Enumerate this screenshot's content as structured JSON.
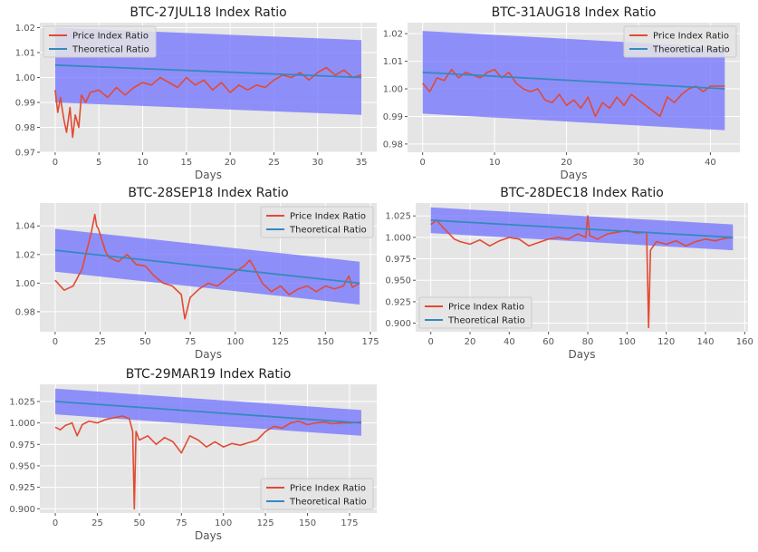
{
  "chart_data": [
    {
      "type": "line",
      "title": "BTC-27JUL18 Index Ratio",
      "xlabel": "Days",
      "xlim": [
        -1.75,
        36.75
      ],
      "ylim": [
        0.97,
        1.022
      ],
      "xticks": [
        0,
        5,
        10,
        15,
        20,
        25,
        30,
        35
      ],
      "xtick_labels": [
        "0",
        "5",
        "10",
        "15",
        "20",
        "25",
        "30",
        "35"
      ],
      "yticks": [
        0.97,
        0.98,
        0.99,
        1.0,
        1.01,
        1.02
      ],
      "ytick_labels": [
        "0.97",
        "0.98",
        "0.99",
        "1.00",
        "1.01",
        "1.02"
      ],
      "legend": "top-left",
      "band": {
        "x": [
          0,
          35
        ],
        "upper": [
          1.02,
          1.015
        ],
        "lower": [
          0.99,
          0.985
        ],
        "color": "#7070ff"
      },
      "series": [
        {
          "name": "Price Index Ratio",
          "color": "#e24a33",
          "x": [
            0,
            0.3,
            0.6,
            1,
            1.3,
            1.7,
            2,
            2.3,
            2.7,
            3,
            3.5,
            4,
            5,
            6,
            7,
            8,
            9,
            10,
            11,
            12,
            13,
            14,
            15,
            16,
            17,
            18,
            19,
            20,
            21,
            22,
            23,
            24,
            25,
            26,
            27,
            28,
            29,
            30,
            31,
            32,
            33,
            34,
            35
          ],
          "y": [
            0.995,
            0.986,
            0.992,
            0.983,
            0.978,
            0.988,
            0.976,
            0.985,
            0.98,
            0.993,
            0.99,
            0.994,
            0.995,
            0.992,
            0.996,
            0.993,
            0.996,
            0.998,
            0.997,
            1.0,
            0.998,
            0.996,
            1.0,
            0.997,
            0.999,
            0.995,
            0.998,
            0.994,
            0.997,
            0.995,
            0.997,
            0.996,
            0.999,
            1.001,
            1.0,
            1.002,
            0.999,
            1.002,
            1.004,
            1.001,
            1.003,
            1.0,
            1.001
          ]
        },
        {
          "name": "Theoretical Ratio",
          "color": "#348abd",
          "x": [
            0,
            35
          ],
          "y": [
            1.005,
            1.0
          ]
        }
      ]
    },
    {
      "type": "line",
      "title": "BTC-31AUG18 Index Ratio",
      "xlabel": "Days",
      "xlim": [
        -2.1,
        44.1
      ],
      "ylim": [
        0.977,
        1.024
      ],
      "xticks": [
        0,
        10,
        20,
        30,
        40
      ],
      "xtick_labels": [
        "0",
        "10",
        "20",
        "30",
        "40"
      ],
      "yticks": [
        0.98,
        0.99,
        1.0,
        1.01,
        1.02
      ],
      "ytick_labels": [
        "0.98",
        "0.99",
        "1.00",
        "1.01",
        "1.02"
      ],
      "legend": "top-right",
      "band": {
        "x": [
          0,
          42
        ],
        "upper": [
          1.021,
          1.015
        ],
        "lower": [
          0.991,
          0.985
        ],
        "color": "#7070ff"
      },
      "series": [
        {
          "name": "Price Index Ratio",
          "color": "#e24a33",
          "x": [
            0,
            1,
            2,
            3,
            4,
            5,
            6,
            7,
            8,
            9,
            10,
            11,
            12,
            13,
            14,
            15,
            16,
            17,
            18,
            19,
            20,
            21,
            22,
            23,
            24,
            25,
            26,
            27,
            28,
            29,
            30,
            31,
            32,
            33,
            34,
            35,
            36,
            37,
            38,
            39,
            40,
            41,
            42
          ],
          "y": [
            1.002,
            0.999,
            1.004,
            1.003,
            1.007,
            1.004,
            1.006,
            1.005,
            1.004,
            1.006,
            1.007,
            1.004,
            1.006,
            1.002,
            1.0,
            0.999,
            1.0,
            0.996,
            0.995,
            0.998,
            0.994,
            0.996,
            0.993,
            0.997,
            0.99,
            0.995,
            0.993,
            0.997,
            0.994,
            0.998,
            0.996,
            0.994,
            0.992,
            0.99,
            0.997,
            0.995,
            0.998,
            1.0,
            1.001,
            0.999,
            1.001,
            1.001,
            1.001
          ]
        },
        {
          "name": "Theoretical Ratio",
          "color": "#348abd",
          "x": [
            0,
            42
          ],
          "y": [
            1.006,
            1.0
          ]
        }
      ]
    },
    {
      "type": "line",
      "title": "BTC-28SEP18 Index Ratio",
      "xlabel": "Days",
      "xlim": [
        -8.5,
        178.5
      ],
      "ylim": [
        0.966,
        1.056
      ],
      "xticks": [
        0,
        25,
        50,
        75,
        100,
        125,
        150,
        175
      ],
      "xtick_labels": [
        "0",
        "25",
        "50",
        "75",
        "100",
        "125",
        "150",
        "175"
      ],
      "yticks": [
        0.98,
        1.0,
        1.02,
        1.04
      ],
      "ytick_labels": [
        "0.98",
        "1.00",
        "1.02",
        "1.04"
      ],
      "legend": "top-right",
      "band": {
        "x": [
          0,
          169
        ],
        "upper": [
          1.038,
          1.015
        ],
        "lower": [
          1.008,
          0.985
        ],
        "color": "#7070ff"
      },
      "series": [
        {
          "name": "Price Index Ratio",
          "color": "#e24a33",
          "x": [
            0,
            5,
            10,
            15,
            18,
            20,
            22,
            23,
            24,
            26,
            28,
            30,
            35,
            40,
            45,
            50,
            55,
            60,
            65,
            70,
            72,
            75,
            80,
            85,
            90,
            95,
            100,
            105,
            108,
            110,
            115,
            120,
            125,
            130,
            135,
            140,
            145,
            150,
            155,
            160,
            163,
            165,
            169
          ],
          "y": [
            1.002,
            0.995,
            0.998,
            1.01,
            1.025,
            1.035,
            1.048,
            1.04,
            1.038,
            1.03,
            1.022,
            1.018,
            1.015,
            1.02,
            1.013,
            1.012,
            1.005,
            1.0,
            0.998,
            0.992,
            0.975,
            0.99,
            0.996,
            1.0,
            0.998,
            1.003,
            1.008,
            1.012,
            1.016,
            1.012,
            1.0,
            0.994,
            0.998,
            0.992,
            0.996,
            0.998,
            0.994,
            0.998,
            0.996,
            0.998,
            1.005,
            0.997,
            1.0
          ]
        },
        {
          "name": "Theoretical Ratio",
          "color": "#348abd",
          "x": [
            0,
            169
          ],
          "y": [
            1.023,
            1.0
          ]
        }
      ]
    },
    {
      "type": "line",
      "title": "BTC-28DEC18 Index Ratio",
      "xlabel": "Days",
      "xlim": [
        -7.7,
        161.7
      ],
      "ylim": [
        0.89,
        1.04
      ],
      "xticks": [
        0,
        20,
        40,
        60,
        80,
        100,
        120,
        140,
        160
      ],
      "xtick_labels": [
        "0",
        "20",
        "40",
        "60",
        "80",
        "100",
        "120",
        "140",
        "160"
      ],
      "yticks": [
        0.9,
        0.925,
        0.95,
        0.975,
        1.0,
        1.025
      ],
      "ytick_labels": [
        "0.900",
        "0.925",
        "0.950",
        "0.975",
        "1.000",
        "1.025"
      ],
      "legend": "bottom-left",
      "band": {
        "x": [
          0,
          154
        ],
        "upper": [
          1.035,
          1.015
        ],
        "lower": [
          1.005,
          0.985
        ],
        "color": "#7070ff"
      },
      "series": [
        {
          "name": "Price Index Ratio",
          "color": "#e24a33",
          "x": [
            0,
            3,
            6,
            9,
            12,
            15,
            20,
            25,
            30,
            35,
            40,
            45,
            50,
            55,
            60,
            65,
            70,
            75,
            79,
            80,
            81,
            85,
            90,
            95,
            100,
            105,
            110,
            111,
            112,
            115,
            120,
            125,
            130,
            135,
            140,
            145,
            150,
            154
          ],
          "y": [
            1.015,
            1.02,
            1.012,
            1.005,
            0.998,
            0.995,
            0.992,
            0.997,
            0.99,
            0.996,
            1.0,
            0.998,
            0.99,
            0.994,
            0.998,
            1.0,
            0.998,
            1.004,
            1.0,
            1.025,
            1.002,
            0.998,
            1.004,
            1.006,
            1.008,
            1.005,
            1.006,
            0.895,
            0.985,
            0.995,
            0.992,
            0.996,
            0.99,
            0.995,
            0.998,
            0.996,
            0.999,
            1.0
          ]
        },
        {
          "name": "Theoretical Ratio",
          "color": "#348abd",
          "x": [
            0,
            154
          ],
          "y": [
            1.02,
            1.0
          ]
        }
      ]
    },
    {
      "type": "line",
      "title": "BTC-29MAR19 Index Ratio",
      "xlabel": "Days",
      "xlim": [
        -9.2,
        191.2
      ],
      "ylim": [
        0.895,
        1.045
      ],
      "xticks": [
        0,
        25,
        50,
        75,
        100,
        125,
        150,
        175
      ],
      "xtick_labels": [
        "0",
        "25",
        "50",
        "75",
        "100",
        "125",
        "150",
        "175"
      ],
      "yticks": [
        0.9,
        0.925,
        0.95,
        0.975,
        1.0,
        1.025
      ],
      "ytick_labels": [
        "0.900",
        "0.925",
        "0.950",
        "0.975",
        "1.000",
        "1.025"
      ],
      "legend": "bottom-right",
      "band": {
        "x": [
          0,
          182
        ],
        "upper": [
          1.04,
          1.015
        ],
        "lower": [
          1.01,
          0.985
        ],
        "color": "#7070ff"
      },
      "series": [
        {
          "name": "Price Index Ratio",
          "color": "#e24a33",
          "x": [
            0,
            3,
            6,
            10,
            13,
            16,
            20,
            25,
            30,
            35,
            40,
            44,
            46,
            47,
            48,
            50,
            55,
            60,
            65,
            70,
            75,
            80,
            85,
            90,
            95,
            100,
            105,
            110,
            115,
            120,
            125,
            130,
            135,
            140,
            145,
            150,
            155,
            160,
            165,
            170,
            175,
            182
          ],
          "y": [
            0.995,
            0.992,
            0.997,
            1.0,
            0.985,
            0.998,
            1.002,
            1.0,
            1.004,
            1.006,
            1.008,
            1.005,
            0.99,
            0.9,
            0.99,
            0.98,
            0.985,
            0.975,
            0.983,
            0.978,
            0.965,
            0.985,
            0.98,
            0.972,
            0.978,
            0.972,
            0.976,
            0.974,
            0.977,
            0.98,
            0.99,
            0.996,
            0.994,
            1.0,
            1.002,
            0.998,
            1.0,
            1.001,
            0.999,
            1.0,
            1.0,
            1.001
          ]
        },
        {
          "name": "Theoretical Ratio",
          "color": "#348abd",
          "x": [
            0,
            182
          ],
          "y": [
            1.025,
            1.0
          ]
        }
      ]
    }
  ]
}
